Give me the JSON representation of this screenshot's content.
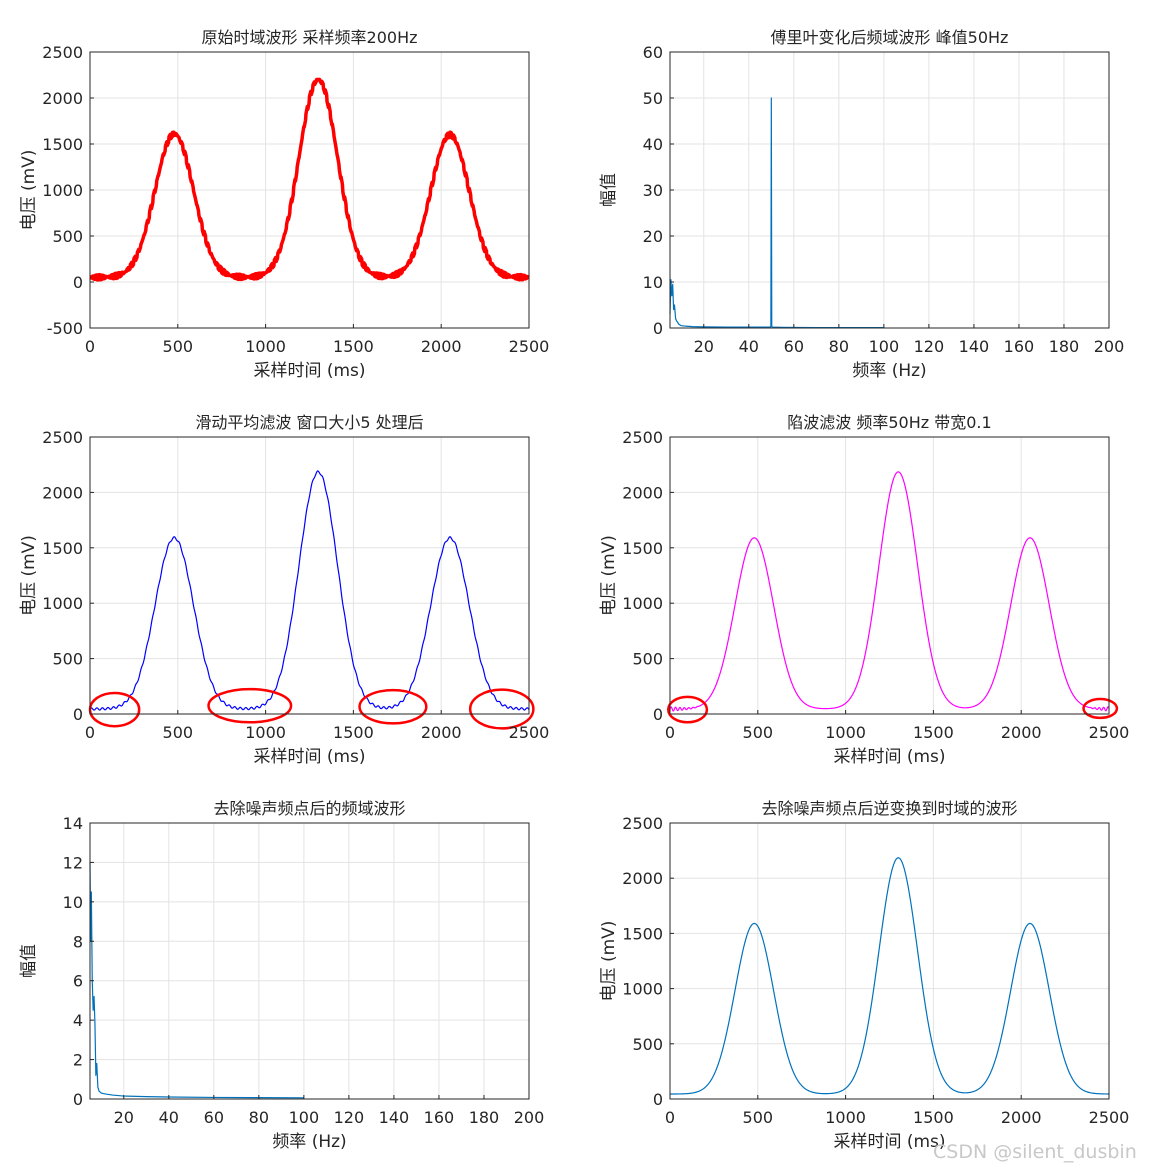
{
  "watermark": "CSDN @silent_dusbin",
  "chart_data": [
    {
      "id": "p1",
      "type": "line",
      "title": "原始时域波形 采样频率200Hz",
      "xlabel": "采样时间 (ms)",
      "ylabel": "电压 (mV)",
      "xlim": [
        0,
        2500
      ],
      "ylim": [
        -500,
        2500
      ],
      "xticks": [
        0,
        500,
        1000,
        1500,
        2000,
        2500
      ],
      "yticks": [
        -500,
        0,
        500,
        1000,
        1500,
        2000,
        2500
      ],
      "grid": true,
      "series": [
        {
          "color": "#ff0000",
          "line_width": 3.5,
          "noise": "50Hz",
          "baseline": 50,
          "peaks": [
            {
              "center": 480,
              "amplitude": 1560,
              "width": 110
            },
            {
              "center": 1300,
              "amplitude": 2150,
              "width": 110
            },
            {
              "center": 2050,
              "amplitude": 1550,
              "width": 110
            }
          ]
        }
      ]
    },
    {
      "id": "p2",
      "type": "line",
      "title": "傅里叶变化后频域波形 峰值50Hz",
      "xlabel": "频率 (Hz)",
      "ylabel": "幅值",
      "xlim": [
        5,
        200
      ],
      "ylim": [
        0,
        60
      ],
      "xticks": [
        20,
        40,
        60,
        80,
        100,
        120,
        140,
        160,
        180,
        200
      ],
      "yticks": [
        0,
        10,
        20,
        30,
        40,
        50,
        60
      ],
      "grid": true,
      "series": [
        {
          "color": "#0072bd",
          "line_width": 1.2,
          "x": [
            5,
            5.4,
            5.8,
            6.2,
            6.6,
            7,
            7.5,
            8,
            9,
            10,
            12,
            15,
            20,
            30,
            40,
            49.5,
            49.8,
            50,
            50.2,
            50.5,
            55,
            70,
            100
          ],
          "y": [
            3,
            10.5,
            7,
            9.5,
            4,
            5,
            2,
            1.5,
            0.8,
            0.5,
            0.4,
            0.3,
            0.25,
            0.2,
            0.2,
            0.2,
            0.3,
            50,
            0.3,
            0.2,
            0.15,
            0.1,
            0.1
          ]
        }
      ]
    },
    {
      "id": "p3",
      "type": "line",
      "title": "滑动平均滤波 窗口大小5 处理后",
      "xlabel": "采样时间 (ms)",
      "ylabel": "电压 (mV)",
      "xlim": [
        0,
        2500
      ],
      "ylim": [
        0,
        2500
      ],
      "xticks": [
        0,
        500,
        1000,
        1500,
        2000,
        2500
      ],
      "yticks": [
        0,
        500,
        1000,
        1500,
        2000,
        2500
      ],
      "grid": true,
      "series": [
        {
          "color": "#0000ff",
          "line_width": 1.2,
          "noise": "ripple",
          "baseline": 45,
          "peaks": [
            {
              "center": 480,
              "amplitude": 1545,
              "width": 110
            },
            {
              "center": 1300,
              "amplitude": 2140,
              "width": 110
            },
            {
              "center": 2050,
              "amplitude": 1545,
              "width": 110
            }
          ]
        }
      ],
      "annotations": [
        {
          "shape": "ellipse",
          "color": "#ff0000",
          "cx": 140,
          "cy": 40,
          "rx": 140,
          "ry": 150
        },
        {
          "shape": "ellipse",
          "color": "#ff0000",
          "cx": 910,
          "cy": 75,
          "rx": 235,
          "ry": 150
        },
        {
          "shape": "ellipse",
          "color": "#ff0000",
          "cx": 1725,
          "cy": 65,
          "rx": 190,
          "ry": 150
        },
        {
          "shape": "ellipse",
          "color": "#ff0000",
          "cx": 2345,
          "cy": 45,
          "rx": 180,
          "ry": 175
        }
      ]
    },
    {
      "id": "p4",
      "type": "line",
      "title": "陷波滤波 频率50Hz 带宽0.1",
      "xlabel": "采样时间 (ms)",
      "ylabel": "电压 (mV)",
      "xlim": [
        0,
        2500
      ],
      "ylim": [
        0,
        2500
      ],
      "xticks": [
        0,
        500,
        1000,
        1500,
        2000,
        2500
      ],
      "yticks": [
        0,
        500,
        1000,
        1500,
        2000,
        2500
      ],
      "grid": true,
      "series": [
        {
          "color": "#ff00ff",
          "line_width": 1.2,
          "noise": "edges",
          "baseline": 45,
          "peaks": [
            {
              "center": 480,
              "amplitude": 1545,
              "width": 110
            },
            {
              "center": 1300,
              "amplitude": 2140,
              "width": 110
            },
            {
              "center": 2050,
              "amplitude": 1545,
              "width": 110
            }
          ]
        }
      ],
      "annotations": [
        {
          "shape": "ellipse",
          "color": "#ff0000",
          "cx": 100,
          "cy": 40,
          "rx": 110,
          "ry": 115
        },
        {
          "shape": "ellipse",
          "color": "#ff0000",
          "cx": 2450,
          "cy": 50,
          "rx": 95,
          "ry": 85
        }
      ]
    },
    {
      "id": "p5",
      "type": "line",
      "title": "去除噪声频点后的频域波形",
      "xlabel": "频率 (Hz)",
      "ylabel": "幅值",
      "xlim": [
        5,
        200
      ],
      "ylim": [
        0,
        14
      ],
      "xticks": [
        20,
        40,
        60,
        80,
        100,
        120,
        140,
        160,
        180,
        200
      ],
      "yticks": [
        0,
        2,
        4,
        6,
        8,
        10,
        12,
        14
      ],
      "grid": true,
      "series": [
        {
          "color": "#0072bd",
          "line_width": 1.2,
          "x": [
            5,
            5.3,
            5.6,
            6,
            6.4,
            6.8,
            7.2,
            7.6,
            8,
            8.5,
            9,
            10,
            12,
            15,
            20,
            30,
            40,
            60,
            80,
            100
          ],
          "y": [
            12,
            8,
            10.5,
            6,
            4.5,
            5.2,
            3.8,
            1.2,
            1.8,
            0.6,
            0.4,
            0.3,
            0.25,
            0.2,
            0.15,
            0.12,
            0.1,
            0.08,
            0.07,
            0.06
          ]
        }
      ]
    },
    {
      "id": "p6",
      "type": "line",
      "title": "去除噪声频点后逆变换到时域的波形",
      "xlabel": "采样时间 (ms)",
      "ylabel": "电压 (mV)",
      "xlim": [
        0,
        2500
      ],
      "ylim": [
        0,
        2500
      ],
      "xticks": [
        0,
        500,
        1000,
        1500,
        2000,
        2500
      ],
      "yticks": [
        0,
        500,
        1000,
        1500,
        2000,
        2500
      ],
      "grid": true,
      "series": [
        {
          "color": "#0072bd",
          "line_width": 1.2,
          "noise": "none",
          "baseline": 45,
          "peaks": [
            {
              "center": 480,
              "amplitude": 1545,
              "width": 110
            },
            {
              "center": 1300,
              "amplitude": 2140,
              "width": 110
            },
            {
              "center": 2050,
              "amplitude": 1545,
              "width": 110
            }
          ]
        }
      ]
    }
  ]
}
